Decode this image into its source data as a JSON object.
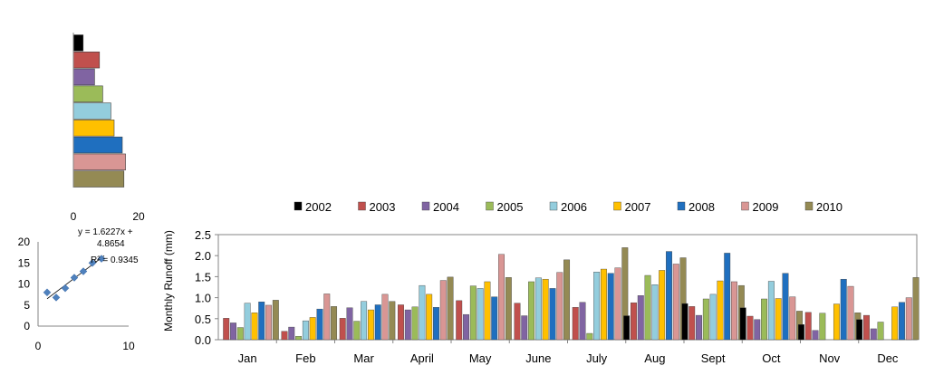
{
  "chart_data": [
    {
      "type": "bar",
      "orientation": "horizontal",
      "values": [
        3,
        8,
        6.5,
        9,
        11.5,
        12.5,
        15,
        16,
        15.5
      ],
      "colors": [
        "#000000",
        "#c0504d",
        "#8064a2",
        "#9bbb59",
        "#93cddd",
        "#ffc000",
        "#1f6fbf",
        "#d99694",
        "#948a54"
      ],
      "xlim": [
        0,
        20
      ],
      "xticks": [
        "0",
        "20"
      ],
      "grid": false
    },
    {
      "type": "scatter",
      "points": [
        [
          1,
          8
        ],
        [
          2,
          6.8
        ],
        [
          3,
          9
        ],
        [
          4,
          11.5
        ],
        [
          5,
          13
        ],
        [
          6,
          15
        ],
        [
          7,
          16
        ]
      ],
      "trendline": {
        "slope": 1.6227,
        "intercept": 4.8654
      },
      "equation_lines": [
        "y = 1.6227x +",
        "4.8654",
        "R² = 0.9345"
      ],
      "xlim": [
        0,
        10
      ],
      "ylim": [
        0,
        20
      ],
      "xticks": [
        "0",
        "10"
      ],
      "yticks": [
        "0",
        "5",
        "10",
        "15",
        "20"
      ],
      "marker_color": "#4f81bd",
      "grid": false
    },
    {
      "type": "bar",
      "categories": [
        "Jan",
        "Feb",
        "Mar",
        "April",
        "May",
        "June",
        "July",
        "Aug",
        "Sept",
        "Oct",
        "Nov",
        "Dec"
      ],
      "ylabel": "Monthly Runoff (mm)",
      "ylim": [
        0,
        2.5
      ],
      "yticks": [
        "0.0",
        "0.5",
        "1.0",
        "1.5",
        "2.0",
        "2.5"
      ],
      "legend_position": "top",
      "grid": false,
      "series": [
        {
          "name": "2002",
          "color": "#000000",
          "values": [
            0,
            0,
            0,
            0,
            0,
            0,
            0,
            0.57,
            0.86,
            0.76,
            0.36,
            0.48
          ]
        },
        {
          "name": "2003",
          "color": "#c0504d",
          "values": [
            0.51,
            0.2,
            0.51,
            0.83,
            0.93,
            0.87,
            0.77,
            0.88,
            0.79,
            0.56,
            0.65,
            0.58
          ]
        },
        {
          "name": "2004",
          "color": "#8064a2",
          "values": [
            0.4,
            0.3,
            0.76,
            0.71,
            0.6,
            0.57,
            0.89,
            1.05,
            0.58,
            0.48,
            0.22,
            0.26
          ]
        },
        {
          "name": "2005",
          "color": "#9bbb59",
          "values": [
            0.29,
            0.08,
            0.44,
            0.78,
            1.28,
            1.38,
            0.15,
            1.53,
            0.97,
            0.97,
            0.63,
            0.42
          ]
        },
        {
          "name": "2006",
          "color": "#93cddd",
          "values": [
            0.87,
            0.45,
            0.91,
            1.29,
            1.22,
            1.47,
            1.61,
            1.31,
            1.08,
            1.39,
            0,
            0
          ]
        },
        {
          "name": "2007",
          "color": "#ffc000",
          "values": [
            0.64,
            0.53,
            0.71,
            1.08,
            1.38,
            1.44,
            1.68,
            1.65,
            1.4,
            0.98,
            0.85,
            0.78
          ]
        },
        {
          "name": "2008",
          "color": "#1f6fbf",
          "values": [
            0.9,
            0.73,
            0.83,
            0.77,
            1.02,
            1.22,
            1.58,
            2.1,
            2.06,
            1.58,
            1.44,
            0.89
          ]
        },
        {
          "name": "2009",
          "color": "#d99694",
          "values": [
            0.82,
            1.09,
            1.08,
            1.41,
            2.03,
            1.6,
            1.71,
            1.8,
            1.38,
            1.02,
            1.27,
            1.0
          ]
        },
        {
          "name": "2010",
          "color": "#948a54",
          "values": [
            0.94,
            0.79,
            0.91,
            1.49,
            1.48,
            1.9,
            2.19,
            1.95,
            1.29,
            0.68,
            0.64,
            1.48
          ]
        }
      ]
    }
  ]
}
